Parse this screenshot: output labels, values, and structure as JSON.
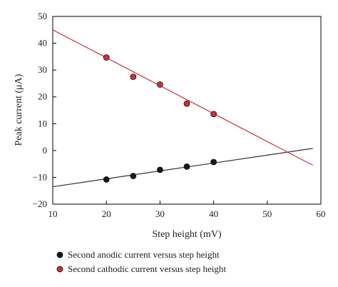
{
  "chart_data": {
    "type": "scatter",
    "xlabel": "Step height (mV)",
    "ylabel": "Peak current (μA)",
    "xlim": [
      10,
      60
    ],
    "ylim": [
      -20,
      50
    ],
    "x_ticks": [
      "10",
      "20",
      "30",
      "40",
      "50",
      "60"
    ],
    "y_ticks": [
      "−20",
      "−10",
      "0",
      "10",
      "20",
      "30",
      "40",
      "50"
    ],
    "legend_position": "bottom",
    "series": [
      {
        "name": "Second anodic current versus step height",
        "color": "#1a1a1a",
        "fit_line_color": "#333333",
        "x": [
          20,
          25,
          30,
          35,
          40
        ],
        "y": [
          -10.8,
          -9.5,
          -7.2,
          -6.0,
          -4.3
        ],
        "fit_line": {
          "x": [
            10,
            58.5
          ],
          "y": [
            -13.5,
            0.8
          ]
        }
      },
      {
        "name": "Second cathodic current versus step height",
        "color": "#c8323a",
        "fit_line_color": "#c8323a",
        "x": [
          20,
          25,
          30,
          35,
          40
        ],
        "y": [
          34.7,
          27.5,
          24.6,
          17.5,
          13.6
        ],
        "fit_line": {
          "x": [
            10,
            58.5
          ],
          "y": [
            45.0,
            -5.5
          ]
        }
      }
    ]
  }
}
